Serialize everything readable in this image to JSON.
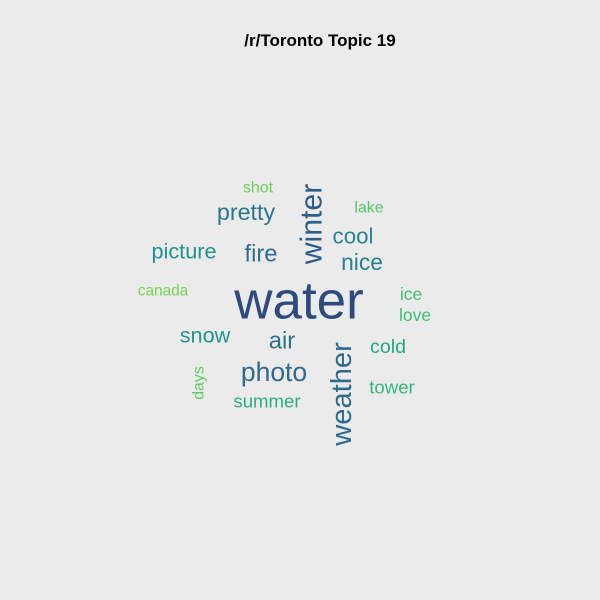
{
  "chart_data": {
    "type": "wordcloud",
    "title": "/r/Toronto Topic 19",
    "words": [
      {
        "word": "water",
        "weight": 10.0,
        "color": "#2f4a7d"
      },
      {
        "word": "winter",
        "weight": 5.7,
        "color": "#2f5c88"
      },
      {
        "word": "weather",
        "weight": 5.5,
        "color": "#2e6b8e"
      },
      {
        "word": "photo",
        "weight": 5.0,
        "color": "#31688e"
      },
      {
        "word": "fire",
        "weight": 4.5,
        "color": "#2f6f8e"
      },
      {
        "word": "air",
        "weight": 4.5,
        "color": "#2c728e"
      },
      {
        "word": "pretty",
        "weight": 4.4,
        "color": "#2a788e"
      },
      {
        "word": "nice",
        "weight": 4.3,
        "color": "#26828e"
      },
      {
        "word": "cool",
        "weight": 4.2,
        "color": "#25848e"
      },
      {
        "word": "picture",
        "weight": 4.1,
        "color": "#21918c"
      },
      {
        "word": "snow",
        "weight": 4.1,
        "color": "#1f968b"
      },
      {
        "word": "cold",
        "weight": 3.7,
        "color": "#22a884"
      },
      {
        "word": "summer",
        "weight": 3.5,
        "color": "#2ab07f"
      },
      {
        "word": "tower",
        "weight": 3.5,
        "color": "#35b779"
      },
      {
        "word": "love",
        "weight": 3.3,
        "color": "#3ebc74"
      },
      {
        "word": "ice",
        "weight": 3.3,
        "color": "#44bf70"
      },
      {
        "word": "lake",
        "weight": 3.0,
        "color": "#54c568"
      },
      {
        "word": "days",
        "weight": 3.0,
        "color": "#62cb5f"
      },
      {
        "word": "shot",
        "weight": 3.0,
        "color": "#6ece58"
      },
      {
        "word": "canada",
        "weight": 2.9,
        "color": "#7ad151"
      }
    ]
  }
}
